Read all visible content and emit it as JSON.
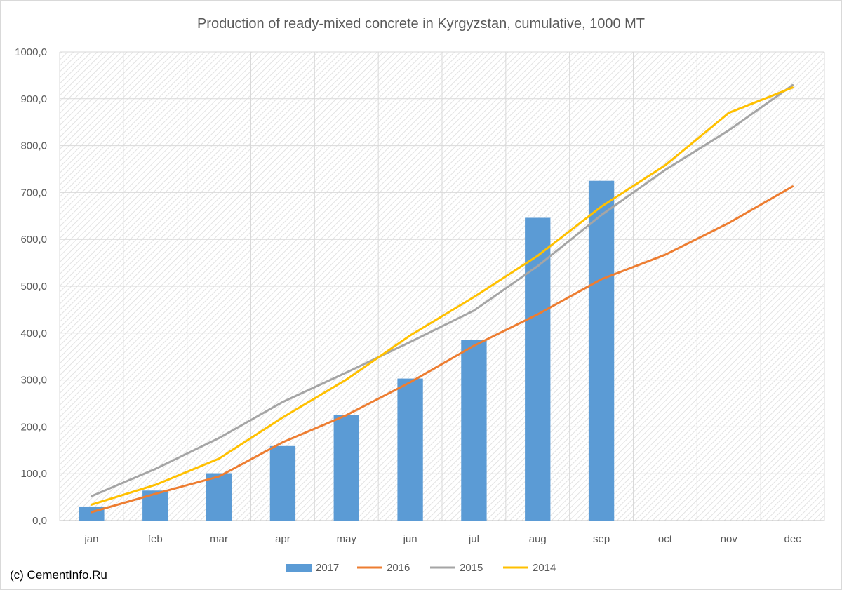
{
  "chart_data": {
    "type": "bar",
    "title": "Production of ready-mixed concrete in Kyrgyzstan, cumulative, 1000 MT",
    "categories": [
      "jan",
      "feb",
      "mar",
      "apr",
      "may",
      "jun",
      "jul",
      "aug",
      "sep",
      "oct",
      "nov",
      "dec"
    ],
    "ylim": [
      0,
      1000
    ],
    "yticks": [
      "0,0",
      "100,0",
      "200,0",
      "300,0",
      "400,0",
      "500,0",
      "600,0",
      "700,0",
      "800,0",
      "900,0",
      "1000,0"
    ],
    "grid": true,
    "legend_position": "bottom",
    "series": [
      {
        "name": "2017",
        "kind": "bar",
        "color": "#5b9bd5",
        "values": [
          30,
          64,
          101,
          159,
          226,
          303,
          385,
          646,
          725,
          null,
          null,
          null
        ]
      },
      {
        "name": "2016",
        "kind": "line",
        "color": "#ed7d31",
        "values": [
          18,
          57,
          94,
          167,
          225,
          295,
          373,
          440,
          515,
          567,
          635,
          713
        ]
      },
      {
        "name": "2015",
        "kind": "line",
        "color": "#a5a5a5",
        "values": [
          52,
          110,
          176,
          253,
          316,
          381,
          448,
          543,
          652,
          748,
          833,
          929
        ]
      },
      {
        "name": "2014",
        "kind": "line",
        "color": "#ffc000",
        "values": [
          34,
          76,
          132,
          220,
          301,
          395,
          477,
          565,
          670,
          758,
          870,
          924
        ]
      }
    ]
  },
  "footer": {
    "credit": "(c) CementInfo.Ru"
  }
}
